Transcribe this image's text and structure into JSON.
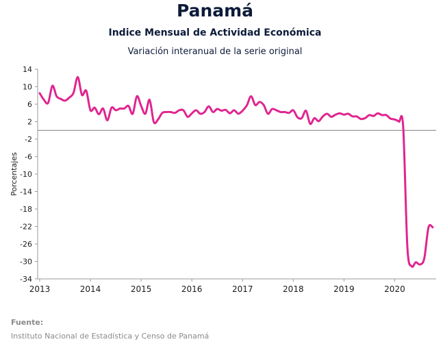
{
  "header": {
    "title": "Panamá",
    "subtitle": "Indice Mensual de  Actividad Económica",
    "subtitle2": "Variación interanual de la serie original"
  },
  "footer": {
    "source_label": "Fuente:",
    "source_text": "Instituto Nacional de Estadística y Censo de Panamá"
  },
  "colors": {
    "series": "#e0248f",
    "zero_line": "#7a7a7a",
    "axis": "#9a9a9a"
  },
  "chart_data": {
    "type": "line",
    "title": "Panamá",
    "subtitle": "Indice Mensual de  Actividad Económica",
    "xlabel": "",
    "ylabel": "Porcentajes",
    "ylim": [
      -34,
      14
    ],
    "yticks": [
      14,
      10,
      6,
      2,
      -2,
      -6,
      -10,
      -14,
      -18,
      -22,
      -26,
      -30,
      -34
    ],
    "xlim": [
      "2013-01",
      "2020-10"
    ],
    "xticks": [
      "2013",
      "2014",
      "2015",
      "2016",
      "2017",
      "2018",
      "2019",
      "2020"
    ],
    "grid": false,
    "legend": "none",
    "series": [
      {
        "x": [
          "2013-01",
          "2013-02",
          "2013-03",
          "2013-04",
          "2013-05",
          "2013-06",
          "2013-07",
          "2013-08",
          "2013-09",
          "2013-10",
          "2013-11",
          "2013-12",
          "2014-01",
          "2014-02",
          "2014-03",
          "2014-04",
          "2014-05",
          "2014-06",
          "2014-07",
          "2014-08",
          "2014-09",
          "2014-10",
          "2014-11",
          "2014-12",
          "2015-01",
          "2015-02",
          "2015-03",
          "2015-04",
          "2015-05",
          "2015-06",
          "2015-07",
          "2015-08",
          "2015-09",
          "2015-10",
          "2015-11",
          "2015-12",
          "2016-01",
          "2016-02",
          "2016-03",
          "2016-04",
          "2016-05",
          "2016-06",
          "2016-07",
          "2016-08",
          "2016-09",
          "2016-10",
          "2016-11",
          "2016-12",
          "2017-01",
          "2017-02",
          "2017-03",
          "2017-04",
          "2017-05",
          "2017-06",
          "2017-07",
          "2017-08",
          "2017-09",
          "2017-10",
          "2017-11",
          "2017-12",
          "2018-01",
          "2018-02",
          "2018-03",
          "2018-04",
          "2018-05",
          "2018-06",
          "2018-07",
          "2018-08",
          "2018-09",
          "2018-10",
          "2018-11",
          "2018-12",
          "2019-01",
          "2019-02",
          "2019-03",
          "2019-04",
          "2019-05",
          "2019-06",
          "2019-07",
          "2019-08",
          "2019-09",
          "2019-10",
          "2019-11",
          "2019-12",
          "2020-01",
          "2020-02",
          "2020-03",
          "2020-04",
          "2020-05",
          "2020-06",
          "2020-07",
          "2020-08",
          "2020-09",
          "2020-10"
        ],
        "values": [
          8.5,
          7.0,
          6.3,
          10.2,
          7.8,
          7.2,
          6.8,
          7.5,
          8.6,
          12.2,
          8.1,
          9.1,
          4.6,
          5.2,
          3.7,
          5.0,
          2.3,
          5.2,
          4.6,
          5.0,
          5.0,
          5.6,
          3.8,
          7.8,
          5.6,
          3.8,
          7.0,
          1.9,
          2.5,
          4.0,
          4.2,
          4.2,
          4.0,
          4.6,
          4.6,
          3.1,
          3.9,
          4.6,
          3.8,
          4.2,
          5.5,
          4.2,
          4.9,
          4.5,
          4.7,
          3.9,
          4.6,
          3.8,
          4.5,
          5.7,
          7.8,
          5.8,
          6.5,
          5.8,
          3.8,
          4.9,
          4.6,
          4.2,
          4.2,
          4.0,
          4.6,
          3.0,
          2.8,
          4.5,
          1.5,
          2.8,
          2.1,
          3.2,
          3.8,
          3.1,
          3.6,
          3.9,
          3.6,
          3.8,
          3.2,
          3.2,
          2.6,
          2.8,
          3.5,
          3.3,
          3.9,
          3.5,
          3.5,
          2.7,
          2.5,
          2.0,
          0.9,
          -26.7,
          -31.1,
          -30.2,
          -30.7,
          -29.3,
          -22.2,
          -22.2
        ]
      }
    ]
  }
}
